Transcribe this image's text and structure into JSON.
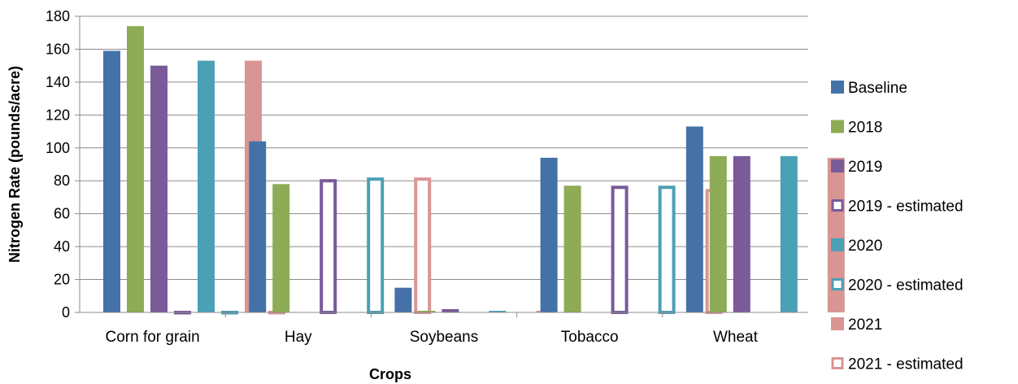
{
  "chart_data": {
    "type": "bar",
    "xlabel": "Crops",
    "ylabel": "Nitrogen Rate (pounds/acre)",
    "ylim": [
      0,
      180
    ],
    "yticks": [
      "0",
      "20",
      "40",
      "60",
      "80",
      "100",
      "120",
      "140",
      "160",
      "180"
    ],
    "grid": "horizontal",
    "legend_position": "right",
    "categories": [
      "Corn for grain",
      "Hay",
      "Soybeans",
      "Tobacco",
      "Wheat"
    ],
    "series": [
      {
        "name": "Baseline",
        "color": "#4472a8",
        "style": "filled",
        "values": [
          159,
          104,
          15,
          94,
          113
        ]
      },
      {
        "name": "2018",
        "color": "#8eab55",
        "style": "filled",
        "values": [
          174,
          78,
          1,
          77,
          95
        ]
      },
      {
        "name": "2019",
        "color": "#7a5a99",
        "style": "filled",
        "values": [
          150,
          0,
          2,
          0,
          95
        ]
      },
      {
        "name": "2019 - estimated",
        "color": "#7a5a99",
        "style": "outline",
        "values": [
          1,
          81,
          0,
          77,
          0
        ]
      },
      {
        "name": "2020",
        "color": "#4aa0b5",
        "style": "filled",
        "values": [
          153,
          0,
          1,
          0,
          95
        ]
      },
      {
        "name": "2020 - estimated",
        "color": "#4aa0b5",
        "style": "outline",
        "values": [
          1,
          82,
          0,
          77,
          0
        ]
      },
      {
        "name": "2021",
        "color": "#d99594",
        "style": "filled",
        "values": [
          153,
          0,
          1,
          0,
          94
        ]
      },
      {
        "name": "2021 - estimated",
        "color": "#d99594",
        "style": "outline",
        "values": [
          1,
          82,
          0,
          75,
          0
        ]
      }
    ]
  }
}
